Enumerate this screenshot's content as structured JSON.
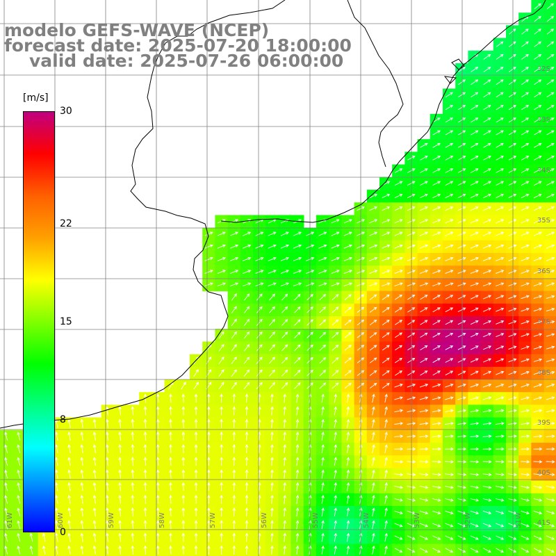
{
  "title": {
    "model": "modelo GEFS-WAVE (NCEP)",
    "forecast": "forecast date: 2025-07-20 18:00:00",
    "valid": "valid date: 2025-07-26 06:00:00"
  },
  "legend": {
    "unit": "[m/s]",
    "ticks": [
      {
        "value": 30,
        "label": "30"
      },
      {
        "value": 22,
        "label": "22"
      },
      {
        "value": 15,
        "label": "15"
      },
      {
        "value": 8,
        "label": "8"
      },
      {
        "value": 0,
        "label": "0"
      }
    ],
    "range": [
      0,
      30
    ],
    "colors": [
      "#0000ff",
      "#0080ff",
      "#00ffff",
      "#00ff80",
      "#00ff00",
      "#80ff00",
      "#ffff00",
      "#ffa000",
      "#ff6000",
      "#ff0000",
      "#c00080"
    ]
  },
  "grid": {
    "lat_labels": [
      "32S",
      "33S",
      "34S",
      "35S",
      "36S",
      "37S",
      "38S",
      "39S",
      "40S",
      "41S"
    ],
    "lon_labels": [
      "61W",
      "60W",
      "59W",
      "58W",
      "57W",
      "56W",
      "55W",
      "54W",
      "53W",
      "52W",
      "51W"
    ]
  },
  "map": {
    "extent_lon": [
      -61.2,
      -50.2
    ],
    "extent_lat": [
      -41.5,
      -31.0
    ],
    "field_name": "wind speed",
    "arrow_color": "#ffffff",
    "coast_color": "#000000",
    "grid_color": "#808080"
  }
}
